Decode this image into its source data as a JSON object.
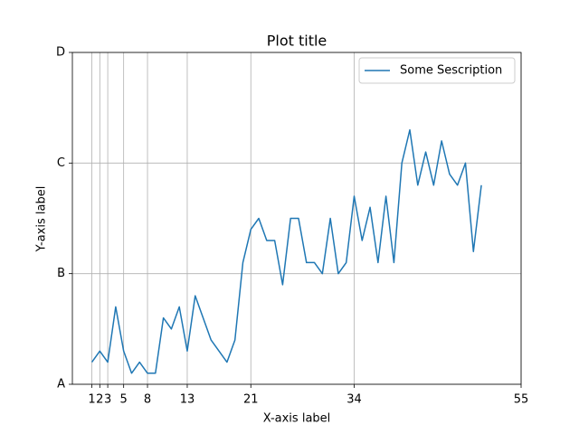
{
  "chart_data": {
    "type": "line",
    "title": "Plot title",
    "xlabel": "X-axis label",
    "ylabel": "Y-axis label",
    "x": [
      1,
      2,
      3,
      4,
      5,
      6,
      7,
      8,
      9,
      10,
      11,
      12,
      13,
      14,
      15,
      16,
      17,
      18,
      19,
      20,
      21,
      22,
      23,
      24,
      25,
      26,
      27,
      28,
      29,
      30,
      31,
      32,
      33,
      34,
      35,
      36,
      37,
      38,
      39,
      40,
      41,
      42,
      43,
      44,
      45,
      46,
      47,
      48,
      49,
      50
    ],
    "series": [
      {
        "name": "Some Sescription",
        "color": "#1f77b4",
        "values": [
          0.2,
          0.3,
          0.2,
          0.7,
          0.3,
          0.1,
          0.2,
          0.1,
          0.1,
          0.6,
          0.5,
          0.7,
          0.3,
          0.8,
          0.6,
          0.4,
          0.3,
          0.2,
          0.4,
          1.1,
          1.4,
          1.5,
          1.3,
          1.3,
          0.9,
          1.5,
          1.5,
          1.1,
          1.1,
          1.0,
          1.5,
          1.0,
          1.1,
          1.7,
          1.3,
          1.6,
          1.1,
          1.7,
          1.1,
          2.0,
          2.3,
          1.8,
          2.1,
          1.8,
          2.2,
          1.9,
          1.8,
          2.0,
          1.2,
          1.8
        ]
      }
    ],
    "xlim": [
      -1.45,
      55
    ],
    "xticks": [
      1,
      2,
      3,
      5,
      8,
      13,
      21,
      34,
      55
    ],
    "ylim": [
      0,
      3
    ],
    "yticks": [
      {
        "value": 0,
        "label": "A"
      },
      {
        "value": 1,
        "label": "B"
      },
      {
        "value": 2,
        "label": "C"
      },
      {
        "value": 3,
        "label": "D"
      }
    ],
    "grid": true,
    "legend": "upper right"
  }
}
